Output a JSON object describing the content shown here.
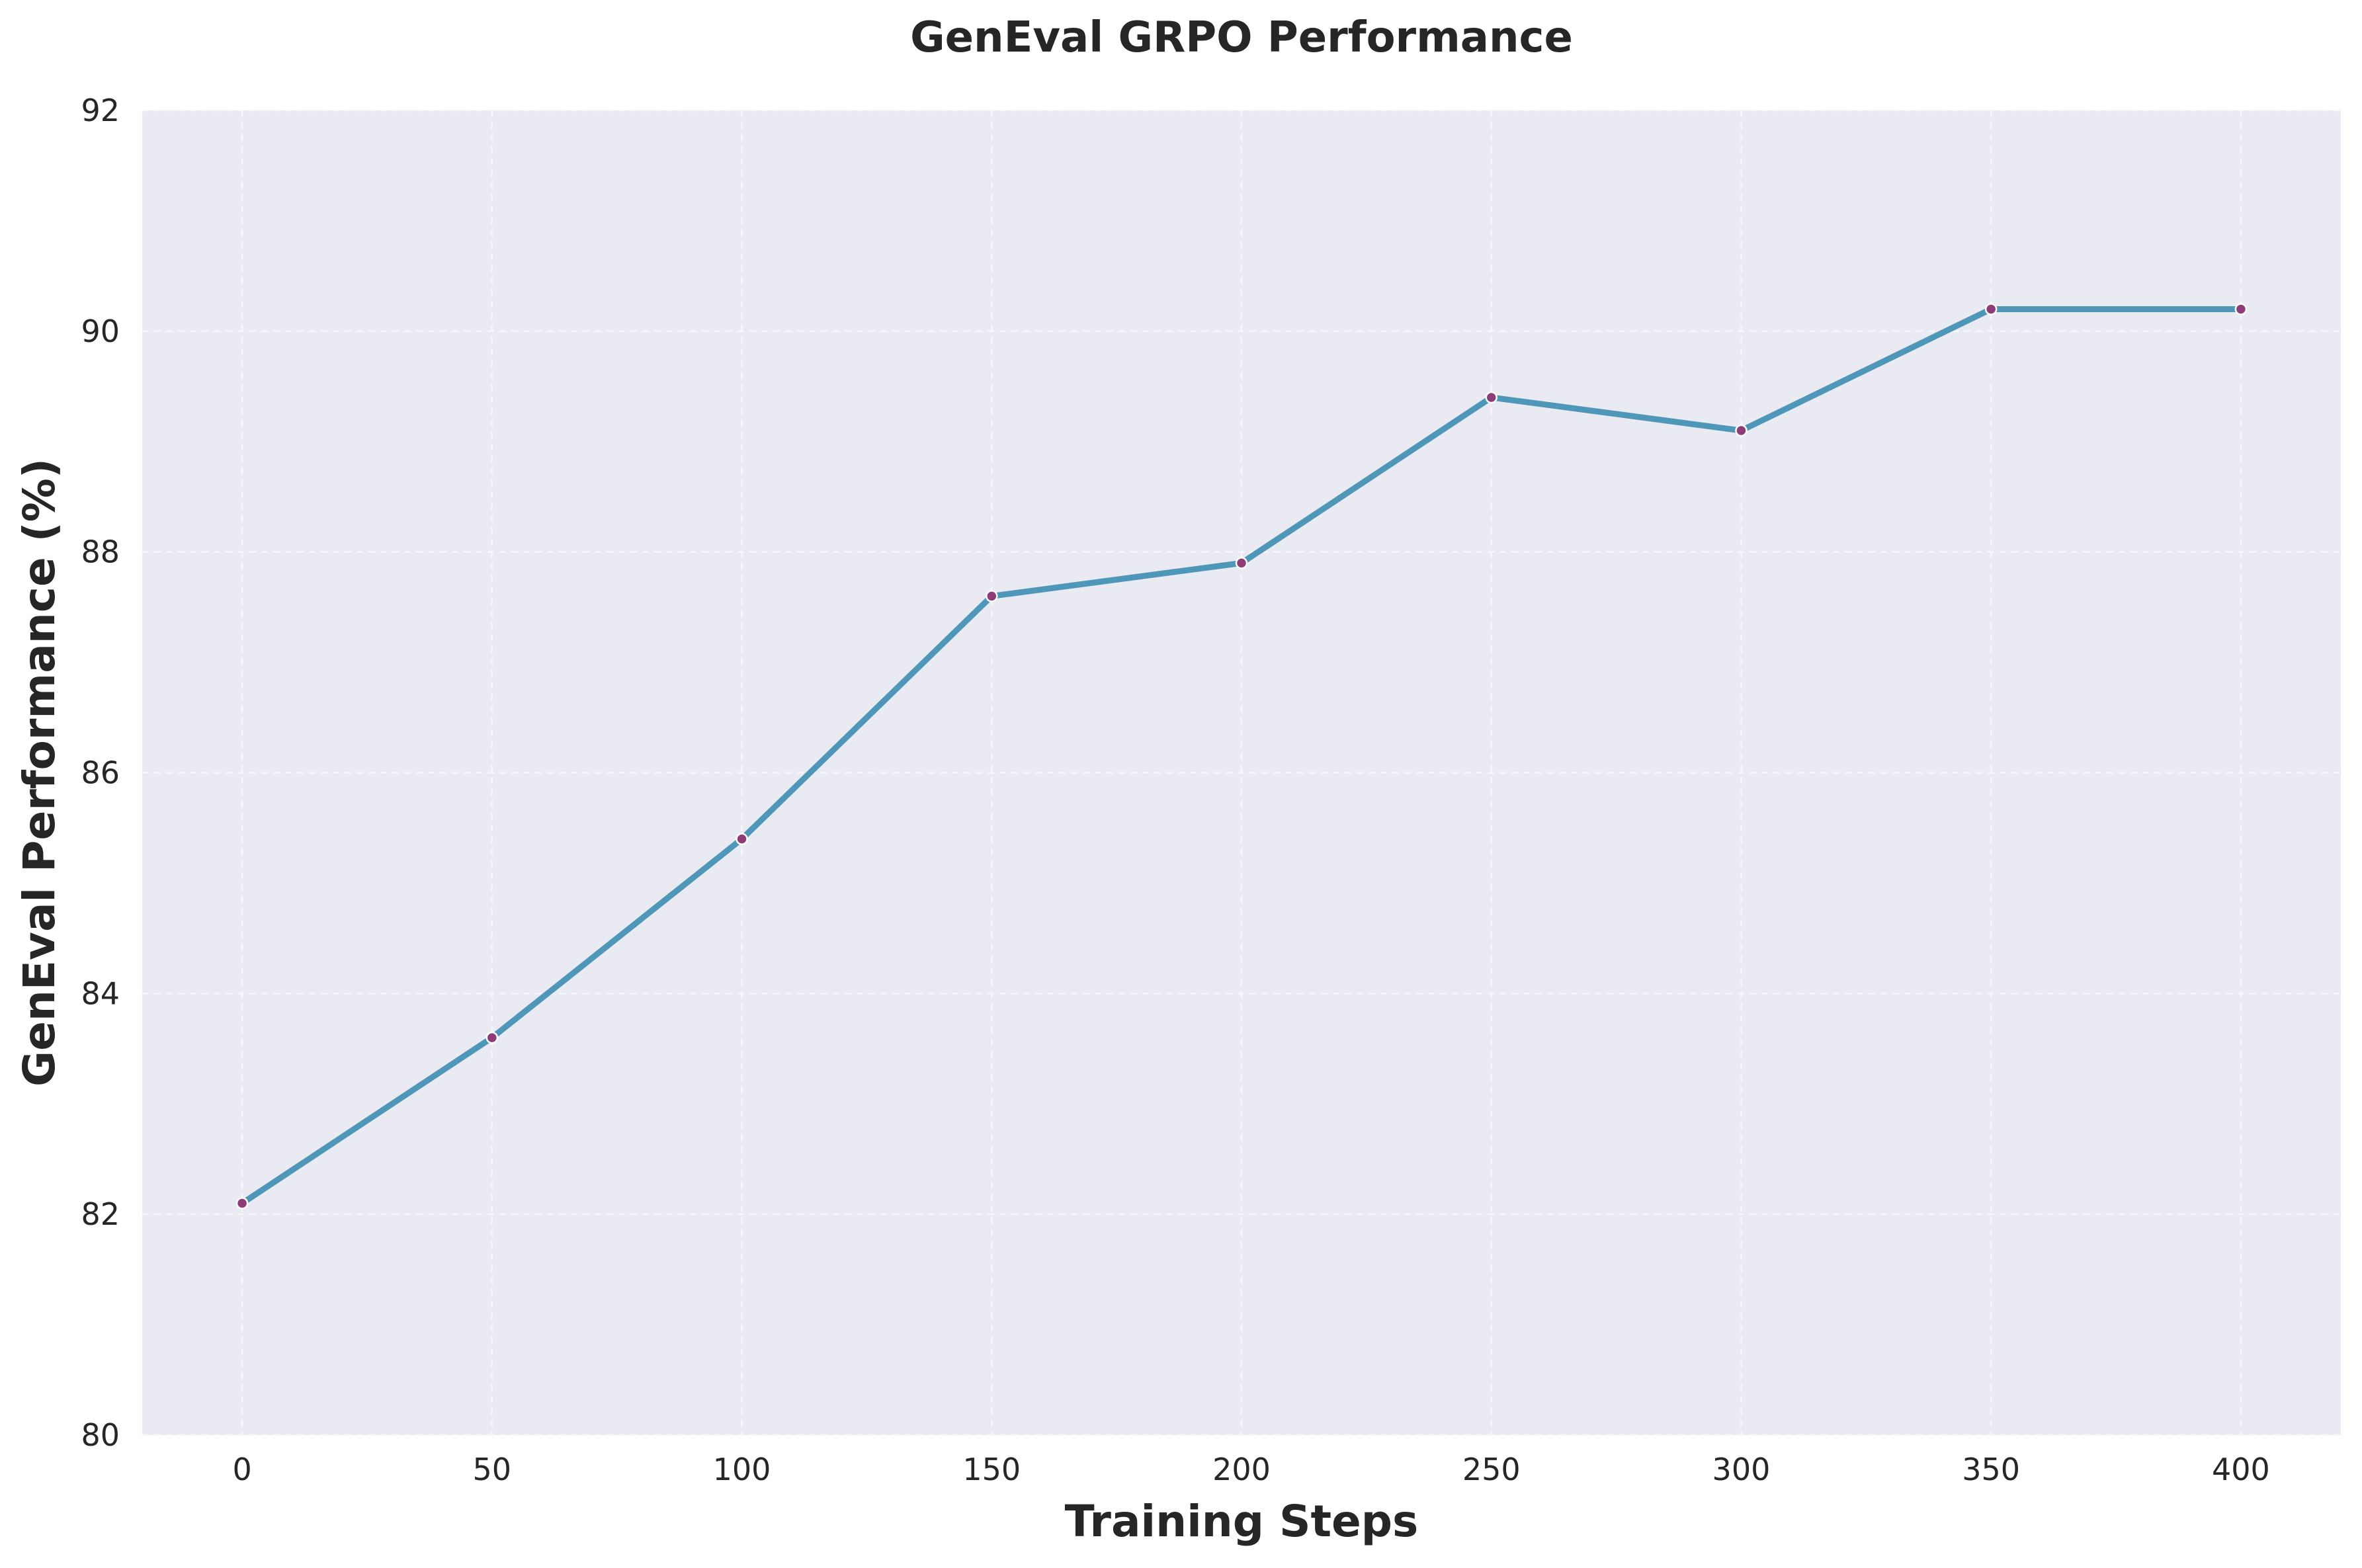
{
  "chart_data": {
    "type": "line",
    "title": "GenEval GRPO Performance",
    "xlabel": "Training Steps",
    "ylabel": "GenEval Performance (%)",
    "x": [
      0,
      50,
      100,
      150,
      200,
      250,
      300,
      350,
      400
    ],
    "series": [
      {
        "values": [
          82.1,
          83.6,
          85.4,
          87.6,
          87.9,
          89.4,
          89.1,
          90.2,
          90.2
        ]
      }
    ],
    "xticks": [
      "0",
      "50",
      "100",
      "150",
      "200",
      "250",
      "300",
      "350",
      "400"
    ],
    "yticks": [
      "80",
      "82",
      "84",
      "86",
      "88",
      "90",
      "92"
    ],
    "xlim": [
      -20,
      420
    ],
    "ylim": [
      80,
      92
    ],
    "grid": true,
    "colors": {
      "line": "#4f97b8",
      "marker": "#8e3c78",
      "plot_background": "#eaeaf2",
      "grid": "#f7f7fb"
    }
  }
}
